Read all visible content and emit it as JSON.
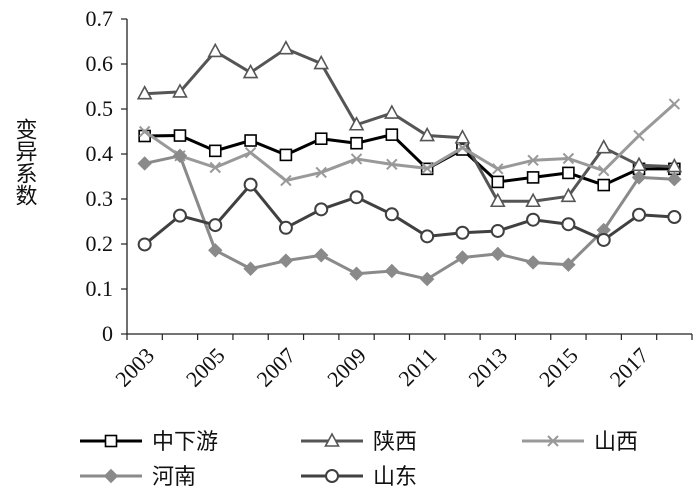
{
  "chart_data": {
    "type": "line",
    "title": "",
    "xlabel": "",
    "ylabel": "变异系数",
    "x": [
      2003,
      2004,
      2005,
      2006,
      2007,
      2008,
      2009,
      2010,
      2011,
      2012,
      2013,
      2014,
      2015,
      2016,
      2017,
      2018
    ],
    "x_tick_labels": [
      "2003",
      "2005",
      "2007",
      "2009",
      "2011",
      "2013",
      "2015",
      "2017"
    ],
    "y_tick_labels": [
      "0",
      "0.1",
      "0.2",
      "0.3",
      "0.4",
      "0.5",
      "0.6",
      "0.7"
    ],
    "ylim": [
      0,
      0.7
    ],
    "grid": false,
    "legend_position": "bottom",
    "series": [
      {
        "name": "中下游",
        "color": "#000000",
        "marker": "square",
        "values": [
          0.44,
          0.441,
          0.407,
          0.43,
          0.398,
          0.434,
          0.424,
          0.443,
          0.367,
          0.41,
          0.338,
          0.348,
          0.358,
          0.331,
          0.367,
          0.367
        ]
      },
      {
        "name": "陕西",
        "color": "#555555",
        "marker": "triangle",
        "values": [
          0.534,
          0.538,
          0.628,
          0.581,
          0.634,
          0.601,
          0.465,
          0.491,
          0.441,
          0.436,
          0.295,
          0.295,
          0.306,
          0.414,
          0.375,
          0.372
        ]
      },
      {
        "name": "山西",
        "color": "#999999",
        "marker": "x",
        "values": [
          0.45,
          0.396,
          0.37,
          0.403,
          0.341,
          0.359,
          0.389,
          0.377,
          0.368,
          0.414,
          0.367,
          0.386,
          0.39,
          0.363,
          0.441,
          0.511
        ]
      },
      {
        "name": "河南",
        "color": "#8a8a8a",
        "marker": "diamond",
        "values": [
          0.379,
          0.396,
          0.186,
          0.145,
          0.163,
          0.175,
          0.134,
          0.14,
          0.122,
          0.17,
          0.178,
          0.159,
          0.154,
          0.231,
          0.348,
          0.344
        ]
      },
      {
        "name": "山东",
        "color": "#404040",
        "marker": "circle",
        "values": [
          0.199,
          0.263,
          0.242,
          0.332,
          0.236,
          0.277,
          0.304,
          0.266,
          0.217,
          0.225,
          0.229,
          0.254,
          0.244,
          0.209,
          0.265,
          0.26
        ]
      }
    ]
  }
}
